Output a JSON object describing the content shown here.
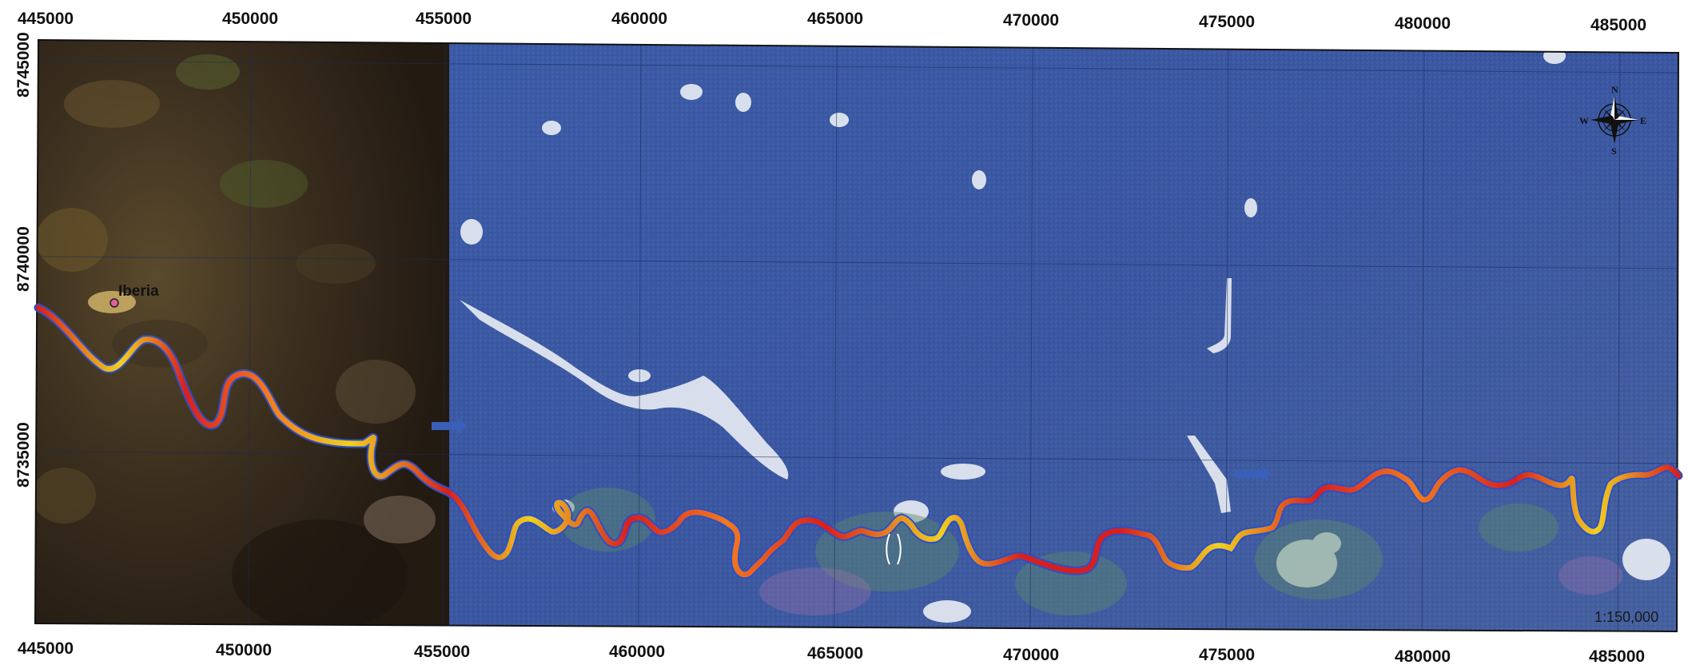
{
  "map": {
    "x_axis": {
      "top_labels": [
        "445000",
        "450000",
        "455000",
        "460000",
        "465000",
        "470000",
        "475000",
        "480000",
        "485000"
      ],
      "bottom_labels": [
        "445000",
        "450000",
        "455000",
        "460000",
        "465000",
        "470000",
        "475000",
        "480000",
        "485000"
      ]
    },
    "y_axis": {
      "labels": [
        "8745000",
        "8740000",
        "8735000"
      ]
    },
    "place": {
      "name": "Iberia",
      "marker_color": "#e0609a"
    },
    "scale": "1:150,000",
    "compass": {
      "n": "N",
      "s": "S",
      "e": "E",
      "w": "W"
    },
    "river_colors": [
      "#d62020",
      "#f0d020",
      "#2a50c8",
      "#f07a20"
    ],
    "imagery_colors": {
      "left_panel": "#2e2418",
      "right_panel": "#3a57a0",
      "clouds": "#f2f4f8"
    }
  }
}
